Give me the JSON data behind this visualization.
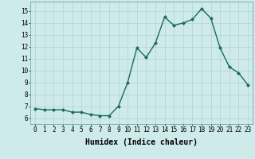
{
  "x": [
    0,
    1,
    2,
    3,
    4,
    5,
    6,
    7,
    8,
    9,
    10,
    11,
    12,
    13,
    14,
    15,
    16,
    17,
    18,
    19,
    20,
    21,
    22,
    23
  ],
  "y": [
    6.8,
    6.7,
    6.7,
    6.7,
    6.5,
    6.5,
    6.3,
    6.2,
    6.2,
    7.0,
    9.0,
    11.9,
    11.1,
    12.3,
    14.5,
    13.8,
    14.0,
    14.3,
    15.2,
    14.4,
    11.9,
    10.3,
    9.8,
    8.8
  ],
  "line_color": "#1a6b5a",
  "marker": "D",
  "marker_size": 2,
  "bg_color": "#ceeaea",
  "grid_color": "#b0d4d4",
  "xlabel": "Humidex (Indice chaleur)",
  "xlabel_fontsize": 7,
  "xlim": [
    -0.5,
    23.5
  ],
  "ylim": [
    5.5,
    15.8
  ],
  "yticks": [
    6,
    7,
    8,
    9,
    10,
    11,
    12,
    13,
    14,
    15
  ],
  "xticks": [
    0,
    1,
    2,
    3,
    4,
    5,
    6,
    7,
    8,
    9,
    10,
    11,
    12,
    13,
    14,
    15,
    16,
    17,
    18,
    19,
    20,
    21,
    22,
    23
  ],
  "tick_fontsize": 5.5,
  "line_width": 1.0
}
